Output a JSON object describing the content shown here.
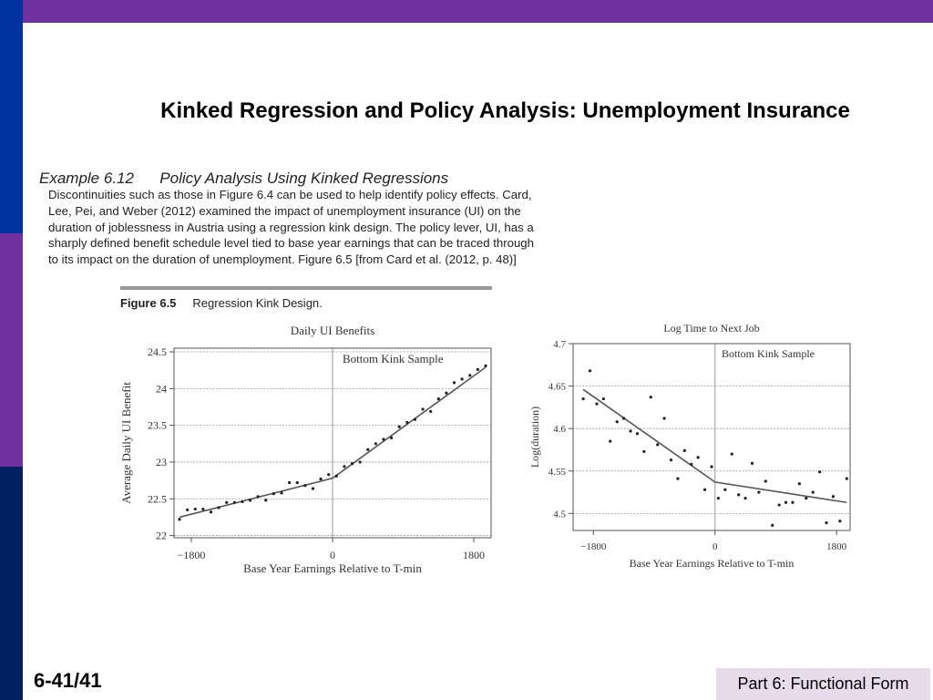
{
  "slide": {
    "title": "Kinked Regression and Policy Analysis: Unemployment Insurance",
    "example_number": "Example 6.12",
    "example_title": "Policy Analysis Using Kinked Regressions",
    "body_lines": [
      "Discontinuities such as those in Figure 6.4 can be used to help identify policy effects. Card,",
      "Lee, Pei, and Weber (2012) examined the impact of unemployment insurance (UI) on the",
      "duration of joblessness in Austria using a regression kink design. The policy lever, UI, has a",
      "sharply defined benefit schedule level tied to base year earnings that can be traced through",
      "to its impact on the duration of unemployment. Figure 6.5 [from Card et al. (2012, p. 48)]"
    ],
    "figure_label": "Figure 6.5",
    "figure_caption": "Regression Kink Design.",
    "slide_number": "6-41/41",
    "footer": "Part 6: Functional Form"
  },
  "colors": {
    "top_bar": "#7030a0",
    "side_blue": "#0033a0",
    "side_purple": "#7030a0",
    "side_navy": "#002060",
    "footer_bg": "#e6dcea"
  },
  "chart_data": [
    {
      "type": "scatter",
      "title": "Daily UI Benefits",
      "xlabel": "Base Year Earnings Relative to T-min",
      "ylabel": "Average Daily UI Benefit",
      "annotation": "Bottom Kink Sample",
      "xlim": [
        -2020,
        2020
      ],
      "ylim": [
        21.97,
        24.55
      ],
      "xticks": [
        -1800,
        0,
        1800
      ],
      "xtick_labels": [
        "−1800",
        "0",
        "1800"
      ],
      "yticks": [
        22,
        22.5,
        23,
        23.5,
        24,
        24.5
      ],
      "ytick_labels": [
        "22",
        "22.5",
        "23",
        "23.5",
        "24",
        "24.5"
      ],
      "grid": "horizontal-dotted",
      "kink_at": 0,
      "x": [
        -1950,
        -1850,
        -1750,
        -1650,
        -1550,
        -1450,
        -1350,
        -1250,
        -1150,
        -1050,
        -950,
        -850,
        -750,
        -650,
        -550,
        -450,
        -350,
        -250,
        -150,
        -50,
        50,
        150,
        250,
        350,
        450,
        550,
        650,
        750,
        850,
        950,
        1050,
        1150,
        1250,
        1350,
        1450,
        1550,
        1650,
        1750,
        1850,
        1950
      ],
      "y": [
        22.22,
        22.35,
        22.36,
        22.36,
        22.32,
        22.38,
        22.45,
        22.45,
        22.46,
        22.48,
        22.53,
        22.48,
        22.57,
        22.58,
        22.72,
        22.72,
        22.68,
        22.64,
        22.77,
        22.83,
        22.81,
        22.94,
        22.98,
        23.0,
        23.17,
        23.25,
        23.31,
        23.33,
        23.48,
        23.54,
        23.58,
        23.72,
        23.69,
        23.86,
        23.94,
        24.08,
        24.13,
        24.18,
        24.26,
        24.31
      ],
      "fit_line": {
        "x": [
          -1950,
          0,
          1950
        ],
        "y": [
          22.25,
          22.78,
          24.29
        ]
      }
    },
    {
      "type": "scatter",
      "title": "Log Time to Next Job",
      "xlabel": "Base Year Earnings Relative to T-min",
      "ylabel": "Log(duration)",
      "annotation": "Bottom Kink Sample",
      "xlim": [
        -2100,
        2000
      ],
      "ylim": [
        4.48,
        4.7
      ],
      "xticks": [
        -1800,
        0,
        1800
      ],
      "xtick_labels": [
        "−1800",
        "0",
        "1800"
      ],
      "yticks": [
        4.5,
        4.55,
        4.6,
        4.65,
        4.7
      ],
      "ytick_labels": [
        "4.5",
        "4.55",
        "4.6",
        "4.65",
        "4.7"
      ],
      "grid": "horizontal-dotted",
      "kink_at": 0,
      "x": [
        -1950,
        -1850,
        -1750,
        -1650,
        -1550,
        -1450,
        -1350,
        -1250,
        -1150,
        -1050,
        -950,
        -850,
        -750,
        -650,
        -550,
        -450,
        -350,
        -250,
        -150,
        -50,
        50,
        150,
        250,
        350,
        450,
        550,
        650,
        750,
        850,
        950,
        1050,
        1150,
        1250,
        1350,
        1450,
        1550,
        1650,
        1750,
        1850,
        1950
      ],
      "y": [
        4.635,
        4.668,
        4.629,
        4.635,
        4.585,
        4.608,
        4.612,
        4.597,
        4.594,
        4.573,
        4.637,
        4.581,
        4.612,
        4.563,
        4.541,
        4.574,
        4.558,
        4.566,
        4.528,
        4.555,
        4.518,
        4.528,
        4.57,
        4.522,
        4.518,
        4.559,
        4.525,
        4.538,
        4.486,
        4.51,
        4.513,
        4.513,
        4.535,
        4.518,
        4.525,
        4.549,
        4.489,
        4.52,
        4.491,
        4.541
      ],
      "fit_line": {
        "x": [
          -1950,
          0,
          1950
        ],
        "y": [
          4.646,
          4.537,
          4.513
        ]
      }
    }
  ]
}
